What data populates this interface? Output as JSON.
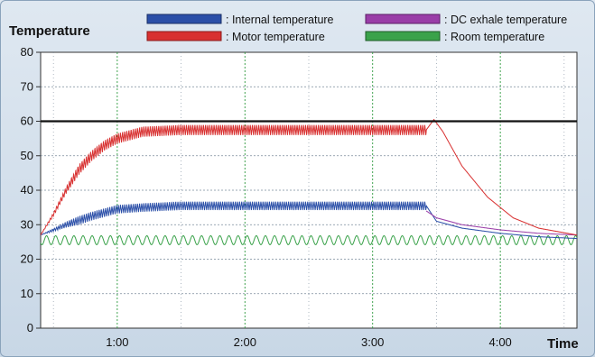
{
  "chart_data": {
    "type": "line",
    "ylabel": "Temperature",
    "xlabel": "Time",
    "ylim": [
      0,
      80
    ],
    "xlim": [
      0.4,
      4.6
    ],
    "yticks": [
      0,
      10,
      20,
      30,
      40,
      50,
      60,
      70,
      80
    ],
    "xticks": [
      {
        "value": 1,
        "label": "1:00"
      },
      {
        "value": 2,
        "label": "2:00"
      },
      {
        "value": 3,
        "label": "3:00"
      },
      {
        "value": 4,
        "label": "4:00"
      }
    ],
    "grid": "dashed",
    "reference_line": {
      "y": 60,
      "color": "#111111"
    },
    "legend_position": "top",
    "series": [
      {
        "name": ": Internal temperature",
        "color": "#2b4fa8",
        "oscillation": 2.5,
        "x": [
          0.4,
          0.6,
          0.8,
          1.0,
          1.2,
          1.5,
          2.0,
          2.5,
          3.0,
          3.42,
          3.5,
          3.7,
          4.0,
          4.3,
          4.6
        ],
        "y": [
          27,
          30,
          32.5,
          34.5,
          35,
          35.5,
          35.5,
          35.5,
          35.5,
          35.5,
          31,
          29,
          27.5,
          26.5,
          26
        ]
      },
      {
        "name": ": Motor temperature",
        "color": "#d83030",
        "oscillation": 3,
        "x": [
          0.4,
          0.5,
          0.6,
          0.7,
          0.8,
          0.9,
          1.0,
          1.2,
          1.5,
          2.0,
          2.5,
          3.0,
          3.42,
          3.48,
          3.55,
          3.7,
          3.9,
          4.1,
          4.3,
          4.45,
          4.6
        ],
        "y": [
          27,
          33,
          40,
          46,
          50,
          53,
          55,
          57,
          57.5,
          57.5,
          57.5,
          57.5,
          57.5,
          60.5,
          57,
          47,
          38,
          32,
          29,
          28,
          27
        ]
      },
      {
        "name": ": DC exhale temperature",
        "color": "#9a3ea8",
        "oscillation": 0,
        "x": [
          3.42,
          3.5,
          3.7,
          4.0,
          4.3,
          4.6
        ],
        "y": [
          34,
          32,
          30,
          28.5,
          27.5,
          27
        ]
      },
      {
        "name": ": Room temperature",
        "color": "#3aa24a",
        "oscillation": 1.3,
        "x": [
          0.4,
          1.0,
          2.0,
          3.0,
          4.0,
          4.6
        ],
        "y": [
          25.5,
          25.5,
          25.5,
          25.5,
          25.5,
          25.5
        ]
      }
    ]
  }
}
